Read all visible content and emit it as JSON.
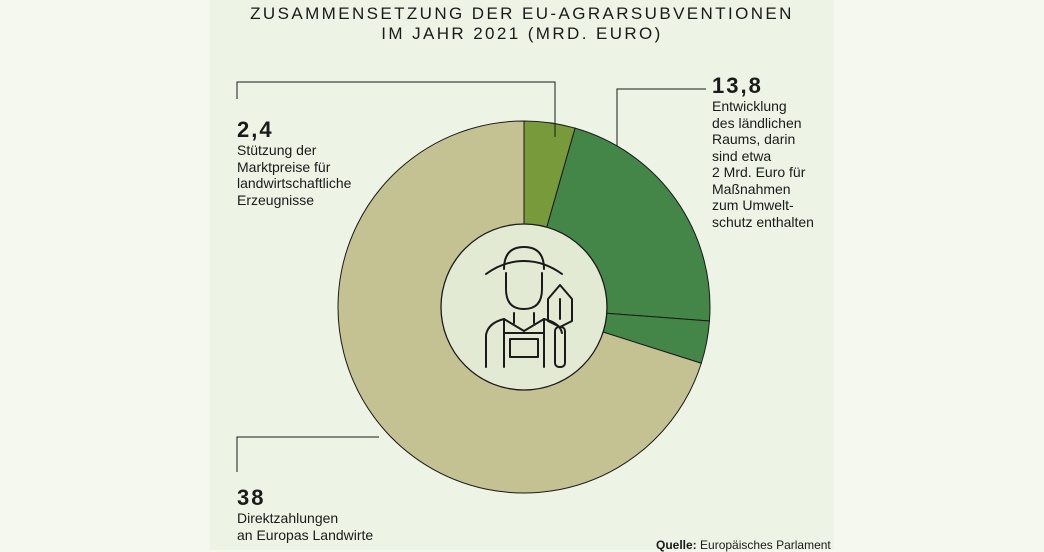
{
  "header": {
    "title_line1": "ZUSAMMENSETZUNG DER EU-AGRARSUBVENTIONEN",
    "title_line2": "IM JAHR 2021 (MRD. EURO)"
  },
  "chart_data": {
    "type": "pie",
    "title": "ZUSAMMENSETZUNG DER EU-AGRARSUBVENTIONEN IM JAHR 2021 (MRD. EURO)",
    "unit": "Mrd. Euro",
    "slices": [
      {
        "label_value": "2,4",
        "value": 2.4,
        "color": "#789a3b",
        "description": [
          "Stützung der",
          "Marktpreise für",
          "landwirtschaftliche",
          "Erzeugnisse"
        ]
      },
      {
        "label_value": "13,8",
        "value": 13.8,
        "color": "#448648",
        "sub_value": 2.0,
        "sub_color": "#448648",
        "description": [
          "Entwicklung",
          "des ländlichen",
          "Raums, darin",
          "sind etwa",
          "2 Mrd. Euro für",
          "Maßnahmen",
          "zum Umwelt-",
          "schutz enthalten"
        ]
      },
      {
        "label_value": "38",
        "value": 38,
        "color": "#c4c193",
        "description": [
          "Direktzahlungen",
          "an Europas Landwirte"
        ]
      }
    ],
    "center_icon": "farmer-with-trowel-icon"
  },
  "source": {
    "label": "Quelle:",
    "text": "Europäisches Parlament"
  }
}
